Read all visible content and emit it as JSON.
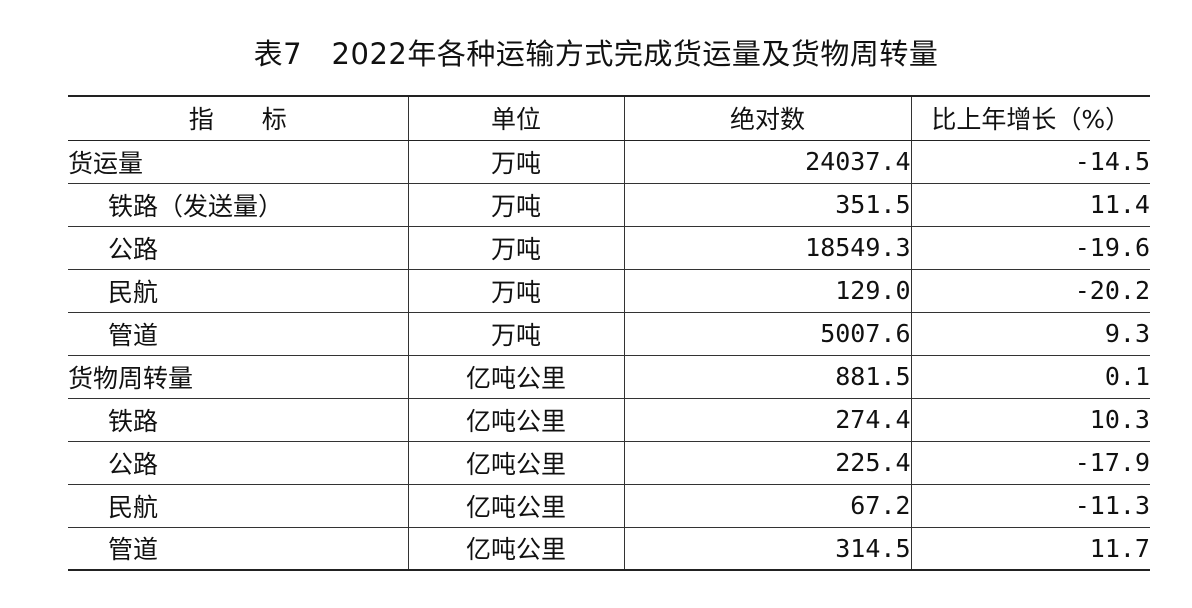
{
  "title": "表7　2022年各种运输方式完成货运量及货物周转量",
  "headers": {
    "indicator_1": "指",
    "indicator_2": "标",
    "unit": "单位",
    "absolute": "绝对数",
    "growth": "比上年增长（%）"
  },
  "rows": [
    {
      "indicator": "货运量",
      "unit": "万吨",
      "value": "24037.4",
      "growth": "-14.5",
      "sub": false
    },
    {
      "indicator": "铁路（发送量）",
      "unit": "万吨",
      "value": "351.5",
      "growth": "11.4",
      "sub": true
    },
    {
      "indicator": "公路",
      "unit": "万吨",
      "value": "18549.3",
      "growth": "-19.6",
      "sub": true
    },
    {
      "indicator": "民航",
      "unit": "万吨",
      "value": "129.0",
      "growth": "-20.2",
      "sub": true
    },
    {
      "indicator": "管道",
      "unit": "万吨",
      "value": "5007.6",
      "growth": "9.3",
      "sub": true
    },
    {
      "indicator": "货物周转量",
      "unit": "亿吨公里",
      "value": "881.5",
      "growth": "0.1",
      "sub": false
    },
    {
      "indicator": "铁路",
      "unit": "亿吨公里",
      "value": "274.4",
      "growth": "10.3",
      "sub": true
    },
    {
      "indicator": "公路",
      "unit": "亿吨公里",
      "value": "225.4",
      "growth": "-17.9",
      "sub": true
    },
    {
      "indicator": "民航",
      "unit": "亿吨公里",
      "value": "67.2",
      "growth": "-11.3",
      "sub": true
    },
    {
      "indicator": "管道",
      "unit": "亿吨公里",
      "value": "314.5",
      "growth": "11.7",
      "sub": true
    }
  ]
}
